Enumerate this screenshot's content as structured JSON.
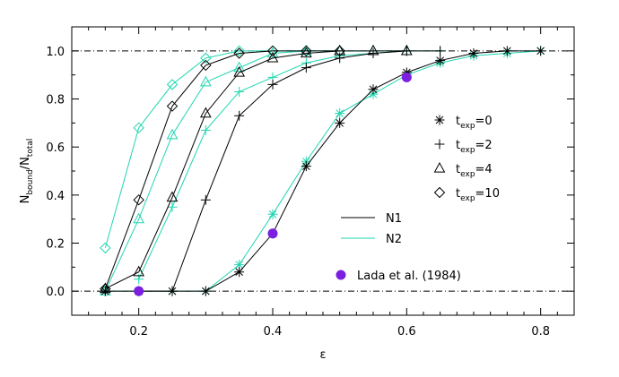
{
  "chart_data": {
    "type": "line",
    "xlabel": "ε",
    "ylabel": {
      "main": "N",
      "sub1": "bound",
      "slash": "/N",
      "sub2": "total"
    },
    "xlim": [
      0.1,
      0.85
    ],
    "ylim": [
      -0.1,
      1.1
    ],
    "xticks": [
      0.2,
      0.4,
      0.6,
      0.8
    ],
    "yticks": [
      0.0,
      0.2,
      0.4,
      0.6,
      0.8,
      1.0
    ],
    "xtick_labels": [
      "0.2",
      "0.4",
      "0.6",
      "0.8"
    ],
    "ytick_labels": [
      "0.0",
      "0.2",
      "0.4",
      "0.6",
      "0.8",
      "1.0"
    ],
    "reference_lines_y": [
      0.0,
      1.0
    ],
    "colors": {
      "N1": "#000000",
      "N2": "#1fd6b0",
      "lada": "#7b1fe0"
    },
    "series": [
      {
        "set": "N1",
        "marker": "star",
        "texp": "0",
        "x": [
          0.15,
          0.2,
          0.25,
          0.3,
          0.35,
          0.4,
          0.45,
          0.5,
          0.55,
          0.6,
          0.65,
          0.7,
          0.75,
          0.8
        ],
        "y": [
          0.0,
          0.0,
          0.0,
          0.0,
          0.08,
          0.24,
          0.52,
          0.7,
          0.84,
          0.91,
          0.96,
          0.99,
          1.0,
          1.0
        ]
      },
      {
        "set": "N1",
        "marker": "plus",
        "texp": "2",
        "x": [
          0.2,
          0.25,
          0.3,
          0.35,
          0.4,
          0.45,
          0.5,
          0.55,
          0.6,
          0.65
        ],
        "y": [
          0.0,
          0.0,
          0.38,
          0.73,
          0.86,
          0.93,
          0.97,
          0.99,
          1.0,
          1.0
        ]
      },
      {
        "set": "N1",
        "marker": "triangle",
        "texp": "4",
        "x": [
          0.15,
          0.2,
          0.25,
          0.3,
          0.35,
          0.4,
          0.45,
          0.5,
          0.55,
          0.6
        ],
        "y": [
          0.01,
          0.08,
          0.39,
          0.74,
          0.91,
          0.97,
          0.99,
          1.0,
          1.0,
          1.0
        ]
      },
      {
        "set": "N1",
        "marker": "diamond",
        "texp": "10",
        "x": [
          0.15,
          0.2,
          0.25,
          0.3,
          0.35,
          0.4,
          0.45,
          0.5
        ],
        "y": [
          0.01,
          0.38,
          0.77,
          0.94,
          0.99,
          1.0,
          1.0,
          1.0
        ]
      },
      {
        "set": "N2",
        "marker": "star",
        "texp": "0",
        "x": [
          0.15,
          0.2,
          0.25,
          0.3,
          0.35,
          0.4,
          0.45,
          0.5,
          0.55,
          0.6,
          0.65,
          0.7,
          0.75,
          0.8
        ],
        "y": [
          0.0,
          0.0,
          0.0,
          0.0,
          0.11,
          0.32,
          0.54,
          0.74,
          0.82,
          0.9,
          0.95,
          0.98,
          0.99,
          1.0
        ]
      },
      {
        "set": "N2",
        "marker": "plus",
        "texp": "2",
        "x": [
          0.2,
          0.25,
          0.3,
          0.35,
          0.4,
          0.45,
          0.5,
          0.55,
          0.6,
          0.65
        ],
        "y": [
          0.05,
          0.35,
          0.67,
          0.83,
          0.89,
          0.95,
          0.98,
          0.99,
          1.0,
          1.0
        ]
      },
      {
        "set": "N2",
        "marker": "triangle",
        "texp": "4",
        "x": [
          0.15,
          0.2,
          0.25,
          0.3,
          0.35,
          0.4,
          0.45,
          0.5,
          0.55,
          0.6
        ],
        "y": [
          0.0,
          0.3,
          0.65,
          0.87,
          0.93,
          0.99,
          1.0,
          1.0,
          1.0,
          1.0
        ]
      },
      {
        "set": "N2",
        "marker": "diamond",
        "texp": "10",
        "x": [
          0.15,
          0.2,
          0.25,
          0.3,
          0.35,
          0.4,
          0.45,
          0.5
        ],
        "y": [
          0.18,
          0.68,
          0.86,
          0.97,
          1.0,
          1.0,
          1.0,
          1.0
        ]
      }
    ],
    "lada_points": {
      "name": "Lada et al. (1984)",
      "x": [
        0.2,
        0.4,
        0.6
      ],
      "y": [
        0.0,
        0.24,
        0.89
      ]
    },
    "legend_markers": [
      {
        "marker": "star",
        "base": "t",
        "sub": "exp",
        "eq": "=0"
      },
      {
        "marker": "plus",
        "base": "t",
        "sub": "exp",
        "eq": "=2"
      },
      {
        "marker": "triangle",
        "base": "t",
        "sub": "exp",
        "eq": "=4"
      },
      {
        "marker": "diamond",
        "base": "t",
        "sub": "exp",
        "eq": "=10"
      }
    ],
    "legend_lines": [
      {
        "name": "N1",
        "color_key": "N1"
      },
      {
        "name": "N2",
        "color_key": "N2"
      }
    ]
  }
}
